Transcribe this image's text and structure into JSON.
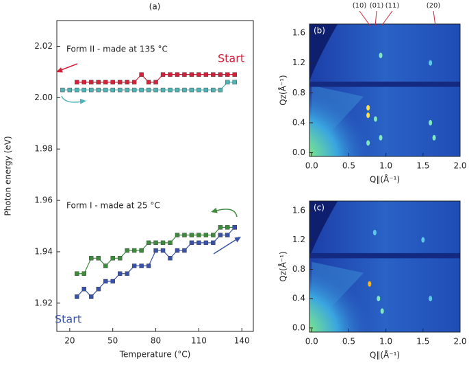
{
  "chart_data": [
    {
      "type": "line",
      "panel_label": "(a)",
      "xlabel": "Temperature (°C)",
      "ylabel": "Photon energy (eV)",
      "xlim": [
        11,
        148
      ],
      "ylim": [
        1.909,
        2.03
      ],
      "xticks": [
        20,
        50,
        80,
        110,
        140
      ],
      "yticks": [
        1.92,
        1.94,
        1.96,
        1.98,
        {
          "value": 2,
          "label": "2.00"
        },
        2.02
      ],
      "annotations": [
        "Form II - made at 135 °C",
        "Start",
        "Form I - made at 25 °C",
        "Start"
      ],
      "series": [
        {
          "color": "#d0223a",
          "x": [
            25,
            30,
            35,
            40,
            45,
            50,
            55,
            60,
            65,
            70,
            75,
            80,
            85,
            90,
            95,
            100,
            105,
            110,
            115,
            120,
            125,
            130,
            135
          ],
          "values": [
            2.006,
            2.006,
            2.006,
            2.006,
            2.006,
            2.006,
            2.006,
            2.006,
            2.006,
            2.009,
            2.006,
            2.006,
            2.009,
            2.009,
            2.009,
            2.009,
            2.009,
            2.009,
            2.009,
            2.009,
            2.009,
            2.009,
            2.009
          ]
        },
        {
          "color": "#4fb3b5",
          "x": [
            15,
            20,
            25,
            30,
            35,
            40,
            45,
            50,
            55,
            60,
            65,
            70,
            75,
            80,
            85,
            90,
            95,
            100,
            105,
            110,
            115,
            120,
            125,
            130,
            135
          ],
          "values": [
            2.003,
            2.003,
            2.003,
            2.003,
            2.003,
            2.003,
            2.003,
            2.003,
            2.003,
            2.003,
            2.003,
            2.003,
            2.003,
            2.003,
            2.003,
            2.003,
            2.003,
            2.003,
            2.003,
            2.003,
            2.003,
            2.003,
            2.003,
            2.006,
            2.006
          ]
        },
        {
          "color": "#3d8a3d",
          "x": [
            25,
            30,
            35,
            40,
            45,
            50,
            55,
            60,
            65,
            70,
            75,
            80,
            85,
            90,
            95,
            100,
            105,
            110,
            115,
            120,
            125,
            130,
            135
          ],
          "values": [
            1.9315,
            1.9315,
            1.9375,
            1.9375,
            1.9345,
            1.9375,
            1.9375,
            1.9405,
            1.9405,
            1.9405,
            1.9435,
            1.9435,
            1.9435,
            1.9435,
            1.9465,
            1.9465,
            1.9465,
            1.9465,
            1.9465,
            1.9465,
            1.9495,
            1.9495,
            1.9495
          ]
        },
        {
          "color": "#3852a8",
          "x": [
            25,
            30,
            35,
            40,
            45,
            50,
            55,
            60,
            65,
            70,
            75,
            80,
            85,
            90,
            95,
            100,
            105,
            110,
            115,
            120,
            125,
            130,
            135
          ],
          "values": [
            1.9225,
            1.9255,
            1.9225,
            1.9255,
            1.9285,
            1.9285,
            1.9315,
            1.9315,
            1.9345,
            1.9345,
            1.9345,
            1.9405,
            1.9405,
            1.9375,
            1.9405,
            1.9405,
            1.9435,
            1.9435,
            1.9435,
            1.9435,
            1.9465,
            1.9465,
            1.9495
          ]
        }
      ]
    },
    {
      "type": "image",
      "panel_label": "(b)",
      "xlabel": "Q∥(Å⁻¹)",
      "ylabel": "Qz(Å⁻¹)",
      "peak_labels": [
        "(10)",
        "(01)",
        "(11)",
        "(20)"
      ],
      "xlim": [
        -0.03,
        2.0
      ],
      "ylim": [
        -0.05,
        1.72
      ],
      "xticks": [
        {
          "value": 0,
          "label": "0.0"
        },
        0.5,
        {
          "value": 1,
          "label": "1.0"
        },
        1.5,
        {
          "value": 2,
          "label": "2.0"
        }
      ],
      "yticks": [
        {
          "value": 0,
          "label": "0.0"
        },
        0.4,
        0.8,
        1.2,
        1.6
      ]
    },
    {
      "type": "image",
      "panel_label": "(c)",
      "xlabel": "Q∥(Å⁻¹)",
      "ylabel": "Qz(Å⁻¹)",
      "xlim": [
        -0.03,
        2.0
      ],
      "ylim": [
        -0.056,
        1.73
      ],
      "xticks": [
        {
          "value": 0,
          "label": "0.0"
        },
        0.5,
        {
          "value": 1,
          "label": "1.0"
        },
        1.5,
        {
          "value": 2,
          "label": "2.0"
        }
      ],
      "yticks": [
        {
          "value": 0,
          "label": "0.0"
        },
        0.4,
        0.8,
        1.2,
        1.6
      ]
    }
  ]
}
